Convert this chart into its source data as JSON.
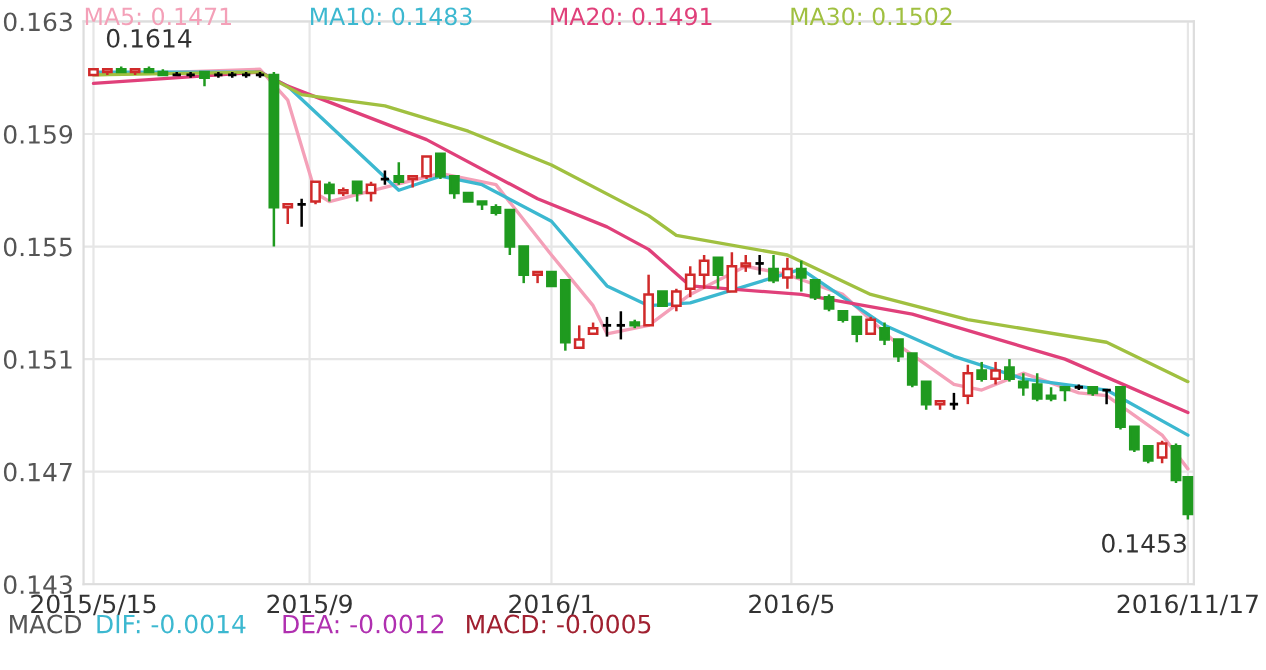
{
  "chart_data": {
    "type": "candlestick",
    "x": [
      "2015-05-15",
      "2015-05-22",
      "2015-05-29",
      "2015-06-05",
      "2015-06-12",
      "2015-06-19",
      "2015-06-26",
      "2015-07-03",
      "2015-07-10",
      "2015-07-17",
      "2015-07-24",
      "2015-07-31",
      "2015-08-07",
      "2015-08-14",
      "2015-08-21",
      "2015-08-28",
      "2015-09-04",
      "2015-09-11",
      "2015-09-18",
      "2015-09-25",
      "2015-10-02",
      "2015-10-09",
      "2015-10-16",
      "2015-10-23",
      "2015-10-30",
      "2015-11-06",
      "2015-11-13",
      "2015-11-20",
      "2015-11-27",
      "2015-12-04",
      "2015-12-11",
      "2015-12-18",
      "2015-12-25",
      "2016-01-01",
      "2016-01-08",
      "2016-01-15",
      "2016-01-22",
      "2016-01-29",
      "2016-02-05",
      "2016-02-12",
      "2016-02-19",
      "2016-02-26",
      "2016-03-04",
      "2016-03-11",
      "2016-03-18",
      "2016-03-25",
      "2016-04-01",
      "2016-04-08",
      "2016-04-15",
      "2016-04-22",
      "2016-04-29",
      "2016-05-06",
      "2016-05-13",
      "2016-05-20",
      "2016-05-27",
      "2016-06-03",
      "2016-06-10",
      "2016-06-17",
      "2016-06-24",
      "2016-07-01",
      "2016-07-08",
      "2016-07-15",
      "2016-07-22",
      "2016-07-29",
      "2016-08-05",
      "2016-08-12",
      "2016-08-19",
      "2016-08-26",
      "2016-09-02",
      "2016-09-09",
      "2016-09-16",
      "2016-09-23",
      "2016-09-30",
      "2016-10-07",
      "2016-10-14",
      "2016-10-21",
      "2016-10-28",
      "2016-11-04",
      "2016-11-11",
      "2016-11-17"
    ],
    "ohlc": [
      [
        0.1611,
        0.1613,
        0.1611,
        0.1613
      ],
      [
        0.1612,
        0.1613,
        0.1611,
        0.1613
      ],
      [
        0.1613,
        0.1614,
        0.1612,
        0.1612
      ],
      [
        0.1612,
        0.1613,
        0.1611,
        0.1613
      ],
      [
        0.1613,
        0.1614,
        0.1612,
        0.1612
      ],
      [
        0.1612,
        0.1613,
        0.1611,
        0.1611
      ],
      [
        0.1611,
        0.1612,
        0.1611,
        0.1611
      ],
      [
        0.1611,
        0.1612,
        0.161,
        0.1611
      ],
      [
        0.1612,
        0.1612,
        0.1607,
        0.161
      ],
      [
        0.1611,
        0.1612,
        0.161,
        0.1611
      ],
      [
        0.1611,
        0.1612,
        0.161,
        0.1611
      ],
      [
        0.1611,
        0.1612,
        0.161,
        0.1611
      ],
      [
        0.1611,
        0.1612,
        0.161,
        0.1611
      ],
      [
        0.1611,
        0.1612,
        0.155,
        0.1564
      ],
      [
        0.1564,
        0.1565,
        0.1558,
        0.1565
      ],
      [
        0.1565,
        0.1567,
        0.1557,
        0.1565
      ],
      [
        0.1566,
        0.1573,
        0.1565,
        0.1573
      ],
      [
        0.1572,
        0.1573,
        0.1566,
        0.1569
      ],
      [
        0.1569,
        0.1571,
        0.1568,
        0.157
      ],
      [
        0.1573,
        0.1573,
        0.1566,
        0.1569
      ],
      [
        0.1569,
        0.1573,
        0.1566,
        0.1572
      ],
      [
        0.1574,
        0.1577,
        0.1572,
        0.1574
      ],
      [
        0.1575,
        0.158,
        0.1572,
        0.1573
      ],
      [
        0.1574,
        0.1575,
        0.1571,
        0.1575
      ],
      [
        0.1575,
        0.1582,
        0.1574,
        0.1582
      ],
      [
        0.1583,
        0.1583,
        0.1574,
        0.1575
      ],
      [
        0.1575,
        0.1575,
        0.1567,
        0.1569
      ],
      [
        0.1569,
        0.1569,
        0.1566,
        0.1566
      ],
      [
        0.1566,
        0.1566,
        0.1563,
        0.1565
      ],
      [
        0.1564,
        0.1565,
        0.1561,
        0.1562
      ],
      [
        0.1563,
        0.1563,
        0.1547,
        0.155
      ],
      [
        0.155,
        0.155,
        0.1537,
        0.154
      ],
      [
        0.154,
        0.1541,
        0.1537,
        0.1541
      ],
      [
        0.1541,
        0.1541,
        0.1536,
        0.1536
      ],
      [
        0.1538,
        0.1538,
        0.1513,
        0.1516
      ],
      [
        0.1514,
        0.1522,
        0.1514,
        0.1517
      ],
      [
        0.1519,
        0.1523,
        0.1519,
        0.1521
      ],
      [
        0.1522,
        0.1525,
        0.1518,
        0.1522
      ],
      [
        0.1522,
        0.1527,
        0.1517,
        0.1522
      ],
      [
        0.1523,
        0.1524,
        0.1521,
        0.1522
      ],
      [
        0.1522,
        0.154,
        0.1522,
        0.1533
      ],
      [
        0.1534,
        0.1534,
        0.1529,
        0.1529
      ],
      [
        0.1529,
        0.1535,
        0.1527,
        0.1534
      ],
      [
        0.1535,
        0.1543,
        0.1532,
        0.154
      ],
      [
        0.154,
        0.1547,
        0.1535,
        0.1545
      ],
      [
        0.1546,
        0.1546,
        0.1535,
        0.154
      ],
      [
        0.1534,
        0.1548,
        0.1534,
        0.1543
      ],
      [
        0.1543,
        0.1547,
        0.1541,
        0.1544
      ],
      [
        0.1544,
        0.1547,
        0.154,
        0.1544
      ],
      [
        0.1542,
        0.1547,
        0.1537,
        0.1538
      ],
      [
        0.1539,
        0.1546,
        0.1535,
        0.1542
      ],
      [
        0.1542,
        0.1545,
        0.1534,
        0.1539
      ],
      [
        0.1538,
        0.1538,
        0.1531,
        0.1532
      ],
      [
        0.1532,
        0.1533,
        0.1527,
        0.1528
      ],
      [
        0.1527,
        0.1527,
        0.1523,
        0.1524
      ],
      [
        0.1525,
        0.1525,
        0.1516,
        0.1519
      ],
      [
        0.1519,
        0.1525,
        0.1519,
        0.1524
      ],
      [
        0.1521,
        0.1523,
        0.1515,
        0.1517
      ],
      [
        0.1517,
        0.1517,
        0.1509,
        0.1511
      ],
      [
        0.1512,
        0.1512,
        0.15,
        0.1501
      ],
      [
        0.1502,
        0.1502,
        0.1492,
        0.1494
      ],
      [
        0.1494,
        0.1495,
        0.1492,
        0.1495
      ],
      [
        0.1494,
        0.1498,
        0.1492,
        0.1494
      ],
      [
        0.1497,
        0.1508,
        0.1494,
        0.1505
      ],
      [
        0.1506,
        0.1509,
        0.1502,
        0.1503
      ],
      [
        0.1503,
        0.1509,
        0.1501,
        0.1506
      ],
      [
        0.1507,
        0.151,
        0.1502,
        0.1503
      ],
      [
        0.1502,
        0.1505,
        0.1497,
        0.15
      ],
      [
        0.1501,
        0.1505,
        0.1495,
        0.1496
      ],
      [
        0.1497,
        0.15,
        0.1495,
        0.1496
      ],
      [
        0.15,
        0.15,
        0.1495,
        0.1499
      ],
      [
        0.15,
        0.1501,
        0.1499,
        0.15
      ],
      [
        0.15,
        0.15,
        0.1497,
        0.1498
      ],
      [
        0.1499,
        0.1499,
        0.1494,
        0.1499
      ],
      [
        0.15,
        0.15,
        0.1485,
        0.1486
      ],
      [
        0.1486,
        0.1486,
        0.1477,
        0.1478
      ],
      [
        0.1479,
        0.1479,
        0.1473,
        0.1474
      ],
      [
        0.1475,
        0.1481,
        0.1473,
        0.148
      ],
      [
        0.1479,
        0.148,
        0.1466,
        0.1467
      ],
      [
        0.1468,
        0.1468,
        0.1453,
        0.1455
      ]
    ],
    "series": [
      {
        "name": "MA5: 0.1471",
        "color": "#f4a0b8",
        "type": "line",
        "x": [
          "2015-05-15",
          "2015-08-07",
          "2015-08-21",
          "2015-09-04",
          "2015-09-11",
          "2015-10-09",
          "2015-11-06",
          "2015-12-04",
          "2016-01-01",
          "2016-01-22",
          "2016-01-29",
          "2016-02-19",
          "2016-03-11",
          "2016-04-08",
          "2016-04-29",
          "2016-05-27",
          "2016-06-24",
          "2016-07-22",
          "2016-08-05",
          "2016-08-26",
          "2016-09-23",
          "2016-10-07",
          "2016-11-04",
          "2016-11-17"
        ],
        "values": [
          0.1611,
          0.1613,
          0.1602,
          0.1569,
          0.1566,
          0.1571,
          0.1576,
          0.1572,
          0.1547,
          0.1529,
          0.1519,
          0.1522,
          0.1533,
          0.1543,
          0.154,
          0.1533,
          0.1515,
          0.1501,
          0.1499,
          0.1505,
          0.1498,
          0.1497,
          0.1483,
          0.1471
        ]
      },
      {
        "name": "MA10: 0.1483",
        "color": "#3cb8d0",
        "type": "line",
        "x": [
          "2015-05-15",
          "2015-08-07",
          "2015-08-21",
          "2015-10-16",
          "2015-11-06",
          "2015-11-27",
          "2016-01-01",
          "2016-01-29",
          "2016-02-19",
          "2016-03-11",
          "2016-05-06",
          "2016-06-17",
          "2016-07-22",
          "2016-08-26",
          "2016-10-07",
          "2016-11-17"
        ],
        "values": [
          0.1612,
          0.1612,
          0.1607,
          0.157,
          0.1575,
          0.1572,
          0.1559,
          0.1536,
          0.1529,
          0.153,
          0.1542,
          0.1522,
          0.1511,
          0.1503,
          0.1499,
          0.1483
        ]
      },
      {
        "name": "MA20: 0.1491",
        "color": "#e0407a",
        "type": "line",
        "x": [
          "2015-05-15",
          "2015-08-07",
          "2015-08-21",
          "2015-10-30",
          "2015-12-25",
          "2016-01-29",
          "2016-02-19",
          "2016-03-11",
          "2016-05-06",
          "2016-07-01",
          "2016-09-16",
          "2016-11-17"
        ],
        "values": [
          0.1608,
          0.1612,
          0.1607,
          0.1588,
          0.1567,
          0.1557,
          0.1549,
          0.1536,
          0.1533,
          0.1526,
          0.151,
          0.1491
        ]
      },
      {
        "name": "MA30: 0.1502",
        "color": "#a0c040",
        "type": "line",
        "x": [
          "2015-05-15",
          "2015-08-07",
          "2015-08-28",
          "2015-10-09",
          "2015-11-20",
          "2016-01-01",
          "2016-02-19",
          "2016-03-04",
          "2016-04-29",
          "2016-06-10",
          "2016-07-29",
          "2016-10-07",
          "2016-11-17"
        ],
        "values": [
          0.1611,
          0.1612,
          0.1604,
          0.16,
          0.1591,
          0.1579,
          0.1561,
          0.1554,
          0.1547,
          0.1533,
          0.1524,
          0.1516,
          0.1502
        ]
      }
    ],
    "xlim": [
      "2015-05-10",
      "2016-11-20"
    ],
    "xticks": [
      {
        "value": "2015-05-15",
        "label": "2015/5/15"
      },
      {
        "value": "2015-09-01",
        "label": "2015/9"
      },
      {
        "value": "2016-01-01",
        "label": "2016/1"
      },
      {
        "value": "2016-05-01",
        "label": "2016/5"
      },
      {
        "value": "2016-11-17",
        "label": "2016/11/17"
      }
    ],
    "ylim": [
      0.143,
      0.163
    ],
    "yticks": [
      0.143,
      0.147,
      0.151,
      0.155,
      0.159,
      0.163
    ],
    "grid": true,
    "legend": "top",
    "marker": "none",
    "line_style": "solid",
    "annotations": [
      {
        "text": "0.1614",
        "x": "2015-06-12",
        "y": 0.1614
      },
      {
        "text": "0.1453",
        "x": "2016-11-17",
        "y": 0.1453
      },
      "MACD",
      "DIF: -0.0014",
      "DEA: -0.0012",
      "MACD: -0.0005"
    ]
  }
}
